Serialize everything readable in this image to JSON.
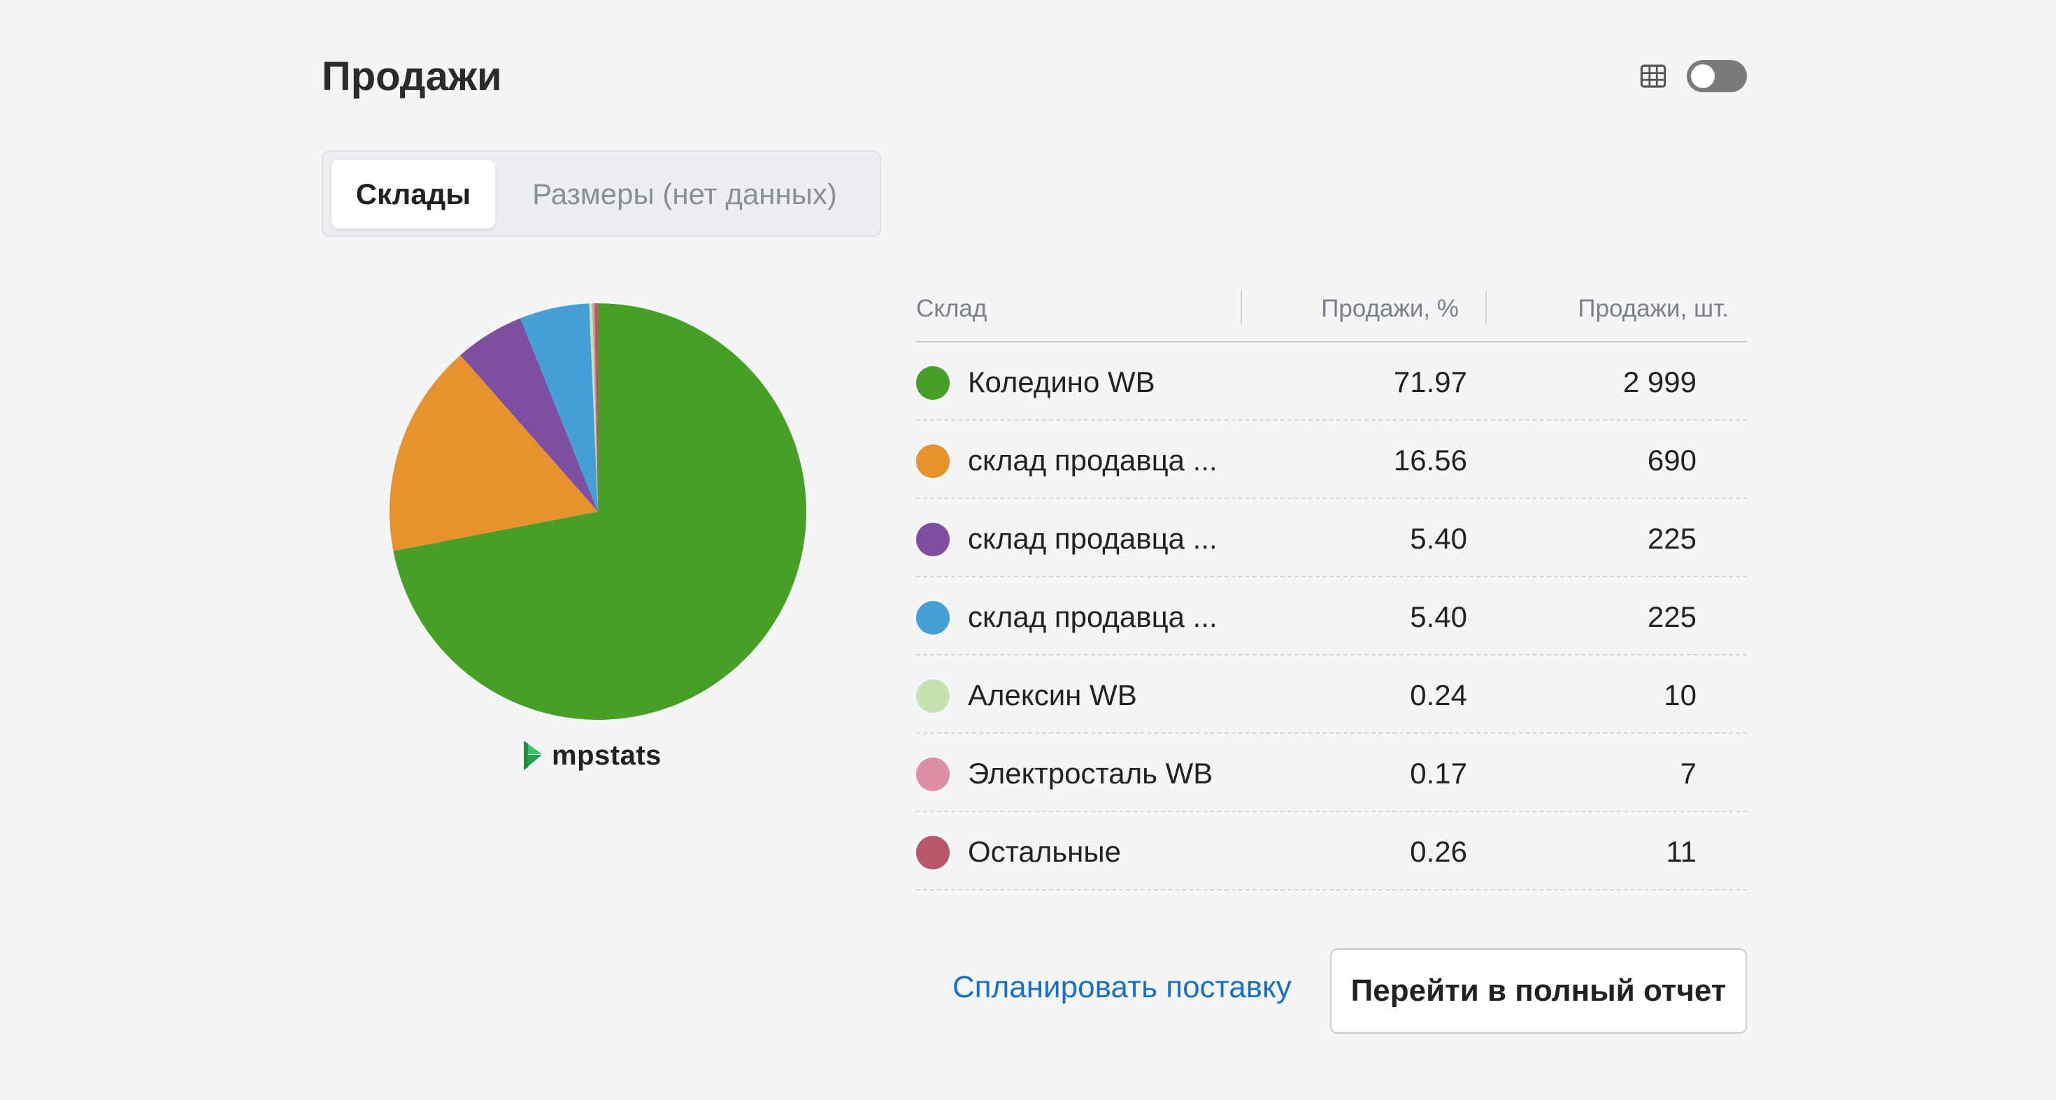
{
  "header": {
    "title": "Продажи",
    "table_view_icon": "table-grid-icon",
    "toggle_state": "off"
  },
  "tabs": [
    {
      "label": "Склады",
      "active": true
    },
    {
      "label": "Размеры (нет данных)",
      "active": false
    }
  ],
  "brand": {
    "name": "mpstats",
    "color": "#2fb85c"
  },
  "table": {
    "columns": [
      "Склад",
      "Продажи, %",
      "Продажи, шт."
    ],
    "rows": [
      {
        "name": "Коледино WB",
        "pct": "71.97",
        "qty": "2 999",
        "color": "#47a025"
      },
      {
        "name": "склад продавца ...",
        "pct": "16.56",
        "qty": "690",
        "color": "#e8922e"
      },
      {
        "name": "склад продавца ...",
        "pct": "5.40",
        "qty": "225",
        "color": "#7e4fa0"
      },
      {
        "name": "склад продавца ...",
        "pct": "5.40",
        "qty": "225",
        "color": "#449fd6"
      },
      {
        "name": "Алексин WB",
        "pct": "0.24",
        "qty": "10",
        "color": "#c4e3b0"
      },
      {
        "name": "Электросталь WB",
        "pct": "0.17",
        "qty": "7",
        "color": "#dd8fa3"
      },
      {
        "name": "Остальные",
        "pct": "0.26",
        "qty": "11",
        "color": "#b8566a"
      }
    ]
  },
  "chart_data": {
    "type": "pie",
    "categories": [
      "Коледино WB",
      "склад продавца ...",
      "склад продавца ...",
      "склад продавца ...",
      "Алексин WB",
      "Электросталь WB",
      "Остальные"
    ],
    "values": [
      71.97,
      16.56,
      5.4,
      5.4,
      0.24,
      0.17,
      0.26
    ],
    "colors": [
      "#47a025",
      "#e8922e",
      "#7e4fa0",
      "#449fd6",
      "#c4e3b0",
      "#dd8fa3",
      "#b8566a"
    ],
    "start": "top",
    "direction": "clockwise"
  },
  "actions": {
    "plan_link": "Спланировать поставку",
    "report_button": "Перейти в полный отчет"
  }
}
